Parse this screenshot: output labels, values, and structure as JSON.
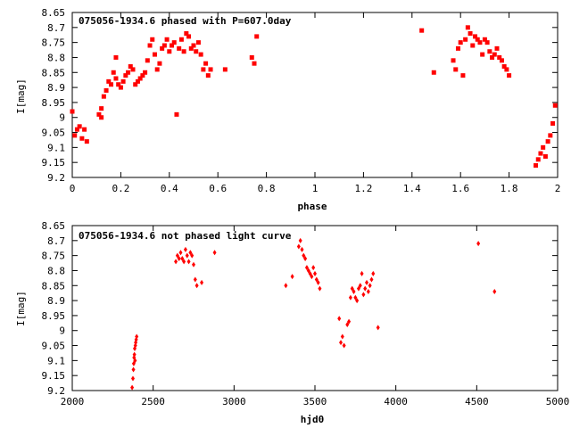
{
  "chart_data": [
    {
      "type": "scatter",
      "title": "075056-1934.6 phased with P=607.0day",
      "xlabel": "phase",
      "ylabel": "I[mag]",
      "xlim": [
        0,
        2
      ],
      "ylim": [
        9.2,
        8.65
      ],
      "y_inverted": true,
      "grid": false,
      "legend": "none",
      "marker_color": "#ff0000",
      "xticks": [
        0,
        0.2,
        0.4,
        0.6,
        0.8,
        1,
        1.2,
        1.4,
        1.6,
        1.8,
        2
      ],
      "xtick_labels": [
        "0",
        "0.2",
        "0.4",
        "0.6",
        "0.8",
        "1",
        "1.2",
        "1.4",
        "1.6",
        "1.8",
        "2"
      ],
      "yticks": [
        8.65,
        8.7,
        8.75,
        8.8,
        8.85,
        8.9,
        8.95,
        9,
        9.05,
        9.1,
        9.15,
        9.2
      ],
      "ytick_labels": [
        "8.65",
        "8.7",
        "8.75",
        "8.8",
        "8.85",
        "8.9",
        "8.95",
        "9",
        "9.05",
        "9.1",
        "9.15",
        "9.2"
      ],
      "series": [
        {
          "x": [
            0.0,
            0.01,
            0.02,
            0.03,
            0.04,
            0.05,
            0.06,
            0.11,
            0.12,
            0.12,
            0.13,
            0.14,
            0.15,
            0.16,
            0.17,
            0.18,
            0.18,
            0.19,
            0.2,
            0.21,
            0.22,
            0.23,
            0.24,
            0.25,
            0.26,
            0.27,
            0.28,
            0.29,
            0.3,
            0.31,
            0.32,
            0.33,
            0.34,
            0.35,
            0.36,
            0.37,
            0.38,
            0.39,
            0.4,
            0.41,
            0.42,
            0.43,
            0.44,
            0.45,
            0.46,
            0.47,
            0.48,
            0.49,
            0.5,
            0.51,
            0.52,
            0.53,
            0.54,
            0.55,
            0.56,
            0.57,
            0.63,
            0.74,
            0.75,
            0.76,
            1.44,
            1.49,
            1.57,
            1.58,
            1.59,
            1.6,
            1.61,
            1.62,
            1.63,
            1.64,
            1.65,
            1.66,
            1.67,
            1.68,
            1.69,
            1.7,
            1.71,
            1.72,
            1.73,
            1.74,
            1.75,
            1.76,
            1.77,
            1.78,
            1.79,
            1.8,
            1.91,
            1.92,
            1.93,
            1.94,
            1.95,
            1.96,
            1.97,
            1.98,
            1.99
          ],
          "y": [
            8.98,
            9.06,
            9.04,
            9.03,
            9.07,
            9.04,
            9.08,
            8.99,
            8.97,
            9.0,
            8.93,
            8.91,
            8.88,
            8.89,
            8.85,
            8.8,
            8.87,
            8.89,
            8.9,
            8.88,
            8.86,
            8.85,
            8.83,
            8.84,
            8.89,
            8.88,
            8.87,
            8.86,
            8.85,
            8.81,
            8.76,
            8.74,
            8.79,
            8.84,
            8.82,
            8.77,
            8.76,
            8.74,
            8.78,
            8.76,
            8.75,
            8.99,
            8.77,
            8.74,
            8.78,
            8.72,
            8.73,
            8.77,
            8.76,
            8.78,
            8.75,
            8.79,
            8.84,
            8.82,
            8.86,
            8.84,
            8.84,
            8.8,
            8.82,
            8.73,
            8.71,
            8.85,
            8.81,
            8.84,
            8.77,
            8.75,
            8.86,
            8.74,
            8.7,
            8.72,
            8.76,
            8.73,
            8.74,
            8.75,
            8.79,
            8.74,
            8.75,
            8.78,
            8.8,
            8.79,
            8.77,
            8.8,
            8.81,
            8.83,
            8.84,
            8.86,
            9.16,
            9.14,
            9.12,
            9.1,
            9.13,
            9.08,
            9.06,
            9.02,
            8.96
          ]
        }
      ]
    },
    {
      "type": "scatter",
      "title": "075056-1934.6 not phased light curve",
      "xlabel": "hjd0",
      "ylabel": "I[mag]",
      "xlim": [
        2000,
        5000
      ],
      "ylim": [
        9.2,
        8.65
      ],
      "y_inverted": true,
      "grid": false,
      "legend": "none",
      "marker_color": "#ff0000",
      "xticks": [
        2000,
        2500,
        3000,
        3500,
        4000,
        4500,
        5000
      ],
      "xtick_labels": [
        "2000",
        "2500",
        "3000",
        "3500",
        "4000",
        "4500",
        "5000"
      ],
      "yticks": [
        8.65,
        8.7,
        8.75,
        8.8,
        8.85,
        8.9,
        8.95,
        9,
        9.05,
        9.1,
        9.15,
        9.2
      ],
      "ytick_labels": [
        "8.65",
        "8.7",
        "8.75",
        "8.8",
        "8.85",
        "8.9",
        "8.95",
        "9",
        "9.05",
        "9.1",
        "9.15",
        "9.2"
      ],
      "series": [
        {
          "x": [
            2370,
            2375,
            2378,
            2380,
            2382,
            2384,
            2386,
            2388,
            2390,
            2392,
            2395,
            2398,
            2640,
            2650,
            2660,
            2670,
            2680,
            2690,
            2700,
            2710,
            2720,
            2730,
            2740,
            2750,
            2760,
            2770,
            2800,
            2880,
            3320,
            3360,
            3400,
            3410,
            3420,
            3430,
            3440,
            3450,
            3460,
            3470,
            3480,
            3490,
            3500,
            3510,
            3520,
            3530,
            3650,
            3660,
            3670,
            3680,
            3700,
            3710,
            3720,
            3730,
            3740,
            3750,
            3760,
            3770,
            3780,
            3790,
            3800,
            3810,
            3820,
            3830,
            3840,
            3850,
            3860,
            3890,
            4510,
            4610
          ],
          "y": [
            9.19,
            9.16,
            9.13,
            9.11,
            9.09,
            9.08,
            9.06,
            9.1,
            9.05,
            9.04,
            9.03,
            9.02,
            8.77,
            8.75,
            8.76,
            8.74,
            8.76,
            8.77,
            8.73,
            8.75,
            8.77,
            8.74,
            8.75,
            8.78,
            8.83,
            8.85,
            8.84,
            8.74,
            8.85,
            8.82,
            8.72,
            8.7,
            8.73,
            8.75,
            8.76,
            8.79,
            8.8,
            8.81,
            8.82,
            8.79,
            8.81,
            8.83,
            8.84,
            8.86,
            8.96,
            9.04,
            9.02,
            9.05,
            8.98,
            8.97,
            8.89,
            8.86,
            8.87,
            8.89,
            8.9,
            8.86,
            8.85,
            8.81,
            8.88,
            8.86,
            8.84,
            8.87,
            8.85,
            8.83,
            8.81,
            8.99,
            8.71,
            8.87
          ]
        }
      ]
    }
  ]
}
